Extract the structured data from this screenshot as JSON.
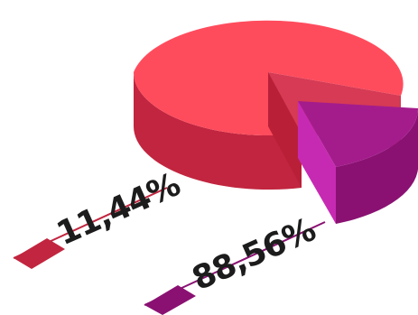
{
  "chart_data": {
    "type": "pie",
    "style": "3d-isometric",
    "values": [
      88.56,
      11.44
    ],
    "data_labels": [
      "88,56%",
      "11,44%"
    ],
    "colors": [
      "#ff4c5d",
      "#b01e8c"
    ],
    "exploded": [
      false,
      true
    ]
  }
}
